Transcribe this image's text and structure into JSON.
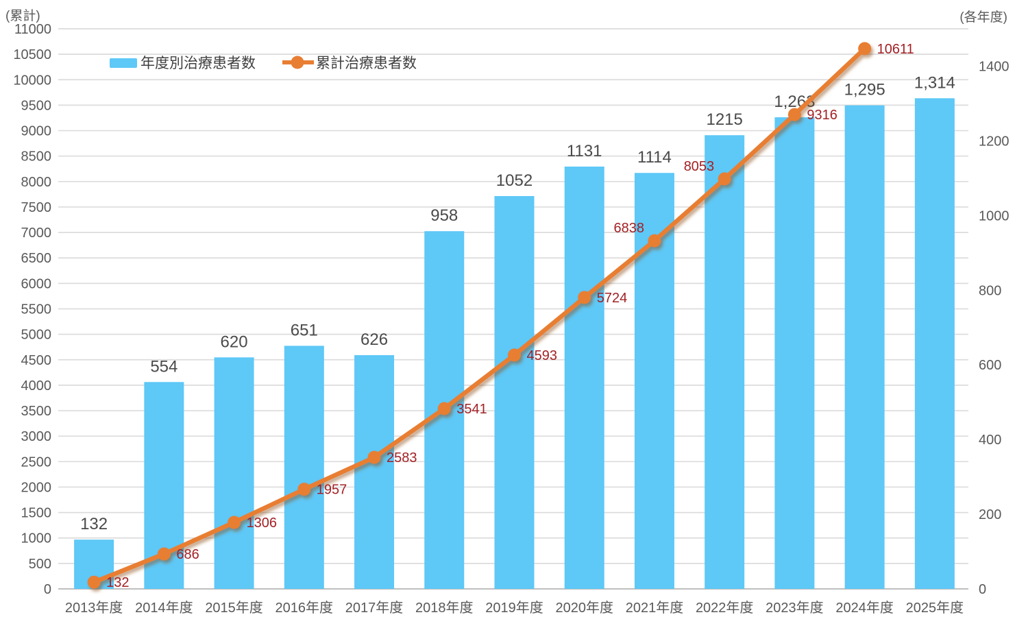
{
  "chart_data": {
    "type": "combo-bar-line",
    "categories": [
      "2013年度",
      "2014年度",
      "2015年度",
      "2016年度",
      "2017年度",
      "2018年度",
      "2019年度",
      "2020年度",
      "2021年度",
      "2022年度",
      "2023年度",
      "2024年度",
      "2025年度"
    ],
    "series": [
      {
        "name": "年度別治療患者数",
        "type": "bar",
        "axis": "right",
        "color": "#5EC8F7",
        "values": [
          132,
          554,
          620,
          651,
          626,
          958,
          1052,
          1131,
          1114,
          1215,
          1263,
          1295,
          1314
        ],
        "value_labels": [
          "132",
          "554",
          "620",
          "651",
          "626",
          "958",
          "1052",
          "1131",
          "1114",
          "1215",
          "1,263",
          "1,295",
          "1,314"
        ],
        "label_color": "#4A4A4A"
      },
      {
        "name": "累計治療患者数",
        "type": "line",
        "axis": "left",
        "color": "#E87E33",
        "values": [
          132,
          686,
          1306,
          1957,
          2583,
          3541,
          4593,
          5724,
          6838,
          8053,
          9316,
          10611
        ],
        "value_labels": [
          "132",
          "686",
          "1306",
          "1957",
          "2583",
          "3541",
          "4593",
          "5724",
          "6838",
          "8053",
          "9316",
          "10611"
        ],
        "label_positions": [
          "right",
          "right",
          "right",
          "right",
          "right",
          "right",
          "right",
          "right",
          "upper-left",
          "upper-left",
          "right",
          "right"
        ],
        "label_color": "#A32024"
      }
    ],
    "left_axis": {
      "title": "(累計)",
      "min": 0,
      "max": 11000,
      "tick_step": 500,
      "tick_labels": [
        "0",
        "500",
        "1000",
        "1500",
        "2000",
        "2500",
        "3000",
        "3500",
        "4000",
        "4500",
        "5000",
        "5500",
        "6000",
        "6500",
        "7000",
        "7500",
        "8000",
        "8500",
        "9000",
        "9500",
        "10000",
        "10500",
        "11000"
      ],
      "text_color": "#595959"
    },
    "right_axis": {
      "title": "(各年度)",
      "min": 0,
      "scale_max": 1500,
      "label_step": 200,
      "tick_labels": [
        "0",
        "200",
        "400",
        "600",
        "800",
        "1000",
        "1200",
        "1400"
      ],
      "text_color": "#595959"
    },
    "x_axis": {
      "text_color": "#595959"
    },
    "grid": {
      "color": "#DCDCDC",
      "baseline_color": "#BFBFBF",
      "grid_on": true
    },
    "legend": {
      "position": "top-inside"
    }
  }
}
